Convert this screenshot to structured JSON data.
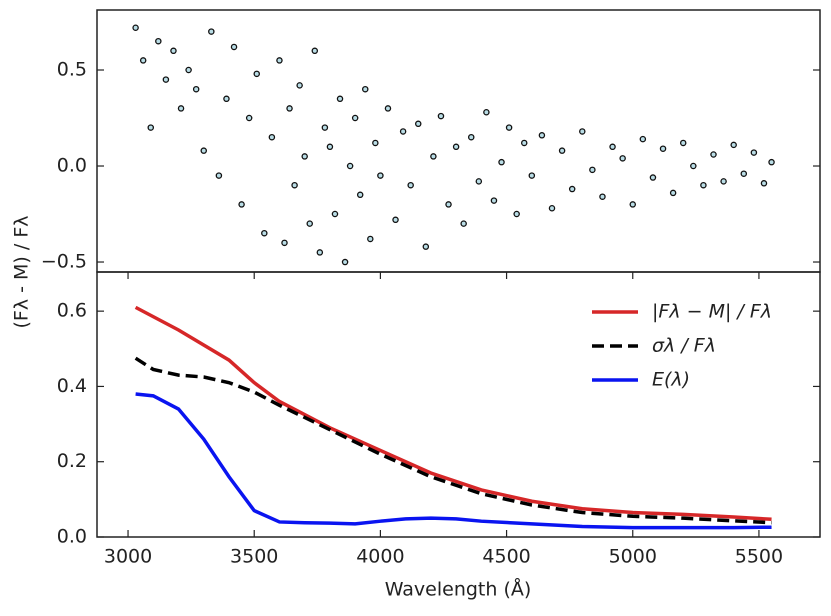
{
  "chart_data": [
    {
      "type": "scatter",
      "ylabel": "(Fλ - M) / Fλ",
      "xlim": [
        2877,
        5742
      ],
      "ylim": [
        -0.552,
        0.8125
      ],
      "yticks": [
        {
          "value": -0.5,
          "label": "−0.5"
        },
        {
          "value": 0,
          "label": "0.0"
        },
        0.5
      ],
      "color": "#b9dde6",
      "edgecolor": "#111111",
      "x": [
        3030,
        3060,
        3090,
        3120,
        3150,
        3180,
        3210,
        3240,
        3270,
        3300,
        3330,
        3360,
        3390,
        3420,
        3450,
        3480,
        3510,
        3540,
        3570,
        3600,
        3620,
        3640,
        3660,
        3680,
        3700,
        3720,
        3740,
        3760,
        3780,
        3800,
        3820,
        3840,
        3860,
        3880,
        3900,
        3920,
        3940,
        3960,
        3980,
        4000,
        4030,
        4060,
        4090,
        4120,
        4150,
        4180,
        4210,
        4240,
        4270,
        4300,
        4330,
        4360,
        4390,
        4420,
        4450,
        4480,
        4510,
        4540,
        4570,
        4600,
        4640,
        4680,
        4720,
        4760,
        4800,
        4840,
        4880,
        4920,
        4960,
        5000,
        5040,
        5080,
        5120,
        5160,
        5200,
        5240,
        5280,
        5320,
        5360,
        5400,
        5440,
        5480,
        5520,
        5550
      ],
      "values": [
        0.72,
        0.55,
        0.2,
        0.65,
        0.45,
        0.6,
        0.3,
        0.5,
        0.4,
        0.08,
        0.7,
        -0.05,
        0.35,
        0.62,
        -0.2,
        0.25,
        0.48,
        -0.35,
        0.15,
        0.55,
        -0.4,
        0.3,
        -0.1,
        0.42,
        0.05,
        -0.3,
        0.6,
        -0.45,
        0.2,
        0.1,
        -0.25,
        0.35,
        -0.5,
        0.0,
        0.25,
        -0.15,
        0.4,
        -0.38,
        0.12,
        -0.05,
        0.3,
        -0.28,
        0.18,
        -0.1,
        0.22,
        -0.42,
        0.05,
        0.26,
        -0.2,
        0.1,
        -0.3,
        0.15,
        -0.08,
        0.28,
        -0.18,
        0.02,
        0.2,
        -0.25,
        0.12,
        -0.05,
        0.16,
        -0.22,
        0.08,
        -0.12,
        0.18,
        -0.02,
        -0.16,
        0.1,
        0.04,
        -0.2,
        0.14,
        -0.06,
        0.09,
        -0.14,
        0.12,
        0.0,
        -0.1,
        0.06,
        -0.08,
        0.11,
        -0.04,
        0.07,
        -0.09,
        0.02
      ]
    },
    {
      "type": "line",
      "xlabel": "Wavelength (Å)",
      "xlim": [
        2877,
        5742
      ],
      "ylim": [
        0,
        0.704
      ],
      "xticks": [
        3000,
        3500,
        4000,
        4500,
        5000,
        5500
      ],
      "yticks": [
        {
          "value": 0,
          "label": "0.0"
        },
        0.2,
        0.4,
        0.6
      ],
      "legend": "upper right",
      "series": [
        {
          "name": "|Fλ − M| / Fλ",
          "color": "#d62728",
          "dash": false,
          "x": [
            3030,
            3200,
            3400,
            3500,
            3600,
            3800,
            4000,
            4200,
            4400,
            4600,
            4800,
            5000,
            5200,
            5400,
            5550
          ],
          "values": [
            0.61,
            0.55,
            0.47,
            0.41,
            0.36,
            0.29,
            0.23,
            0.17,
            0.125,
            0.095,
            0.075,
            0.065,
            0.06,
            0.053,
            0.047
          ]
        },
        {
          "name": "σλ / Fλ",
          "color": "#000000",
          "dash": true,
          "x": [
            3030,
            3100,
            3200,
            3300,
            3400,
            3500,
            3600,
            3800,
            4000,
            4200,
            4400,
            4600,
            4800,
            5000,
            5200,
            5400,
            5550
          ],
          "values": [
            0.475,
            0.445,
            0.43,
            0.425,
            0.41,
            0.385,
            0.35,
            0.285,
            0.22,
            0.16,
            0.115,
            0.085,
            0.065,
            0.055,
            0.05,
            0.043,
            0.038
          ]
        },
        {
          "name": "E(λ)",
          "color": "#0a14f0",
          "dash": false,
          "x": [
            3030,
            3100,
            3200,
            3300,
            3400,
            3500,
            3600,
            3700,
            3800,
            3900,
            4000,
            4100,
            4200,
            4300,
            4400,
            4600,
            4800,
            5000,
            5200,
            5400,
            5550
          ],
          "values": [
            0.38,
            0.375,
            0.34,
            0.26,
            0.16,
            0.07,
            0.04,
            0.038,
            0.037,
            0.035,
            0.042,
            0.048,
            0.05,
            0.048,
            0.042,
            0.035,
            0.028,
            0.025,
            0.025,
            0.025,
            0.026
          ]
        }
      ]
    }
  ]
}
